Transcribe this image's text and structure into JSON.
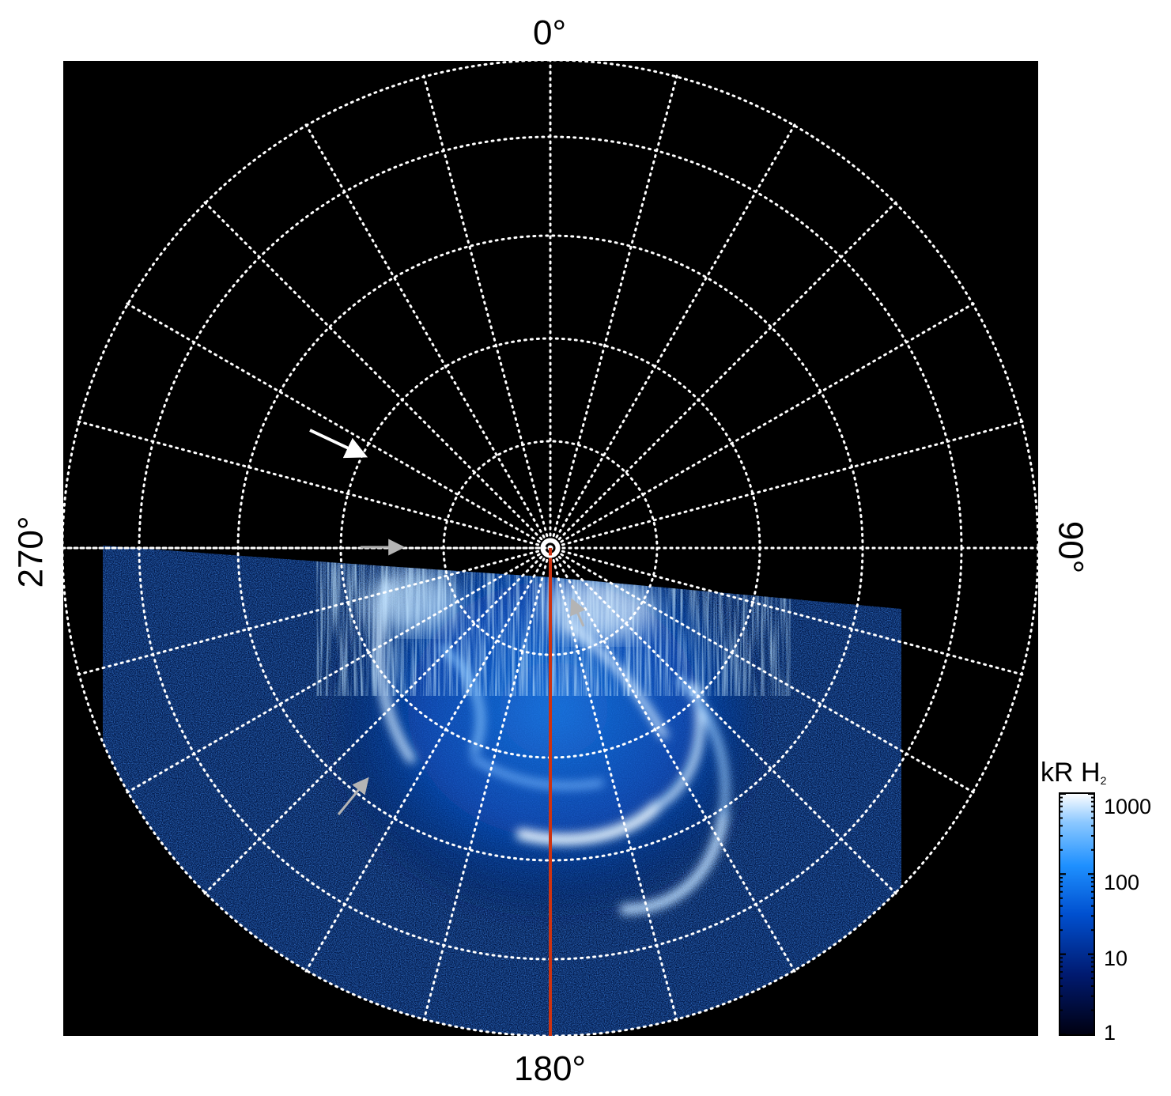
{
  "axis_labels": {
    "top": "0°",
    "bottom": "180°",
    "left": "270°",
    "right": "90°"
  },
  "colorbar": {
    "title": "kR H",
    "title_subscript": "2",
    "ticks": [
      "1000",
      "100",
      "10",
      "1"
    ],
    "scale": "log",
    "range": [
      1,
      1000
    ],
    "colors": [
      "#000010",
      "#001a70",
      "#0050d0",
      "#1e90ff",
      "#8cc8ff",
      "#ffffff"
    ]
  },
  "image": {
    "background": "#000000",
    "grid_color": "#ffffff",
    "meridian_line_color": "#cc3311",
    "arrow_colors": {
      "white": "#ffffff",
      "gray": "#b4b4b4"
    }
  }
}
